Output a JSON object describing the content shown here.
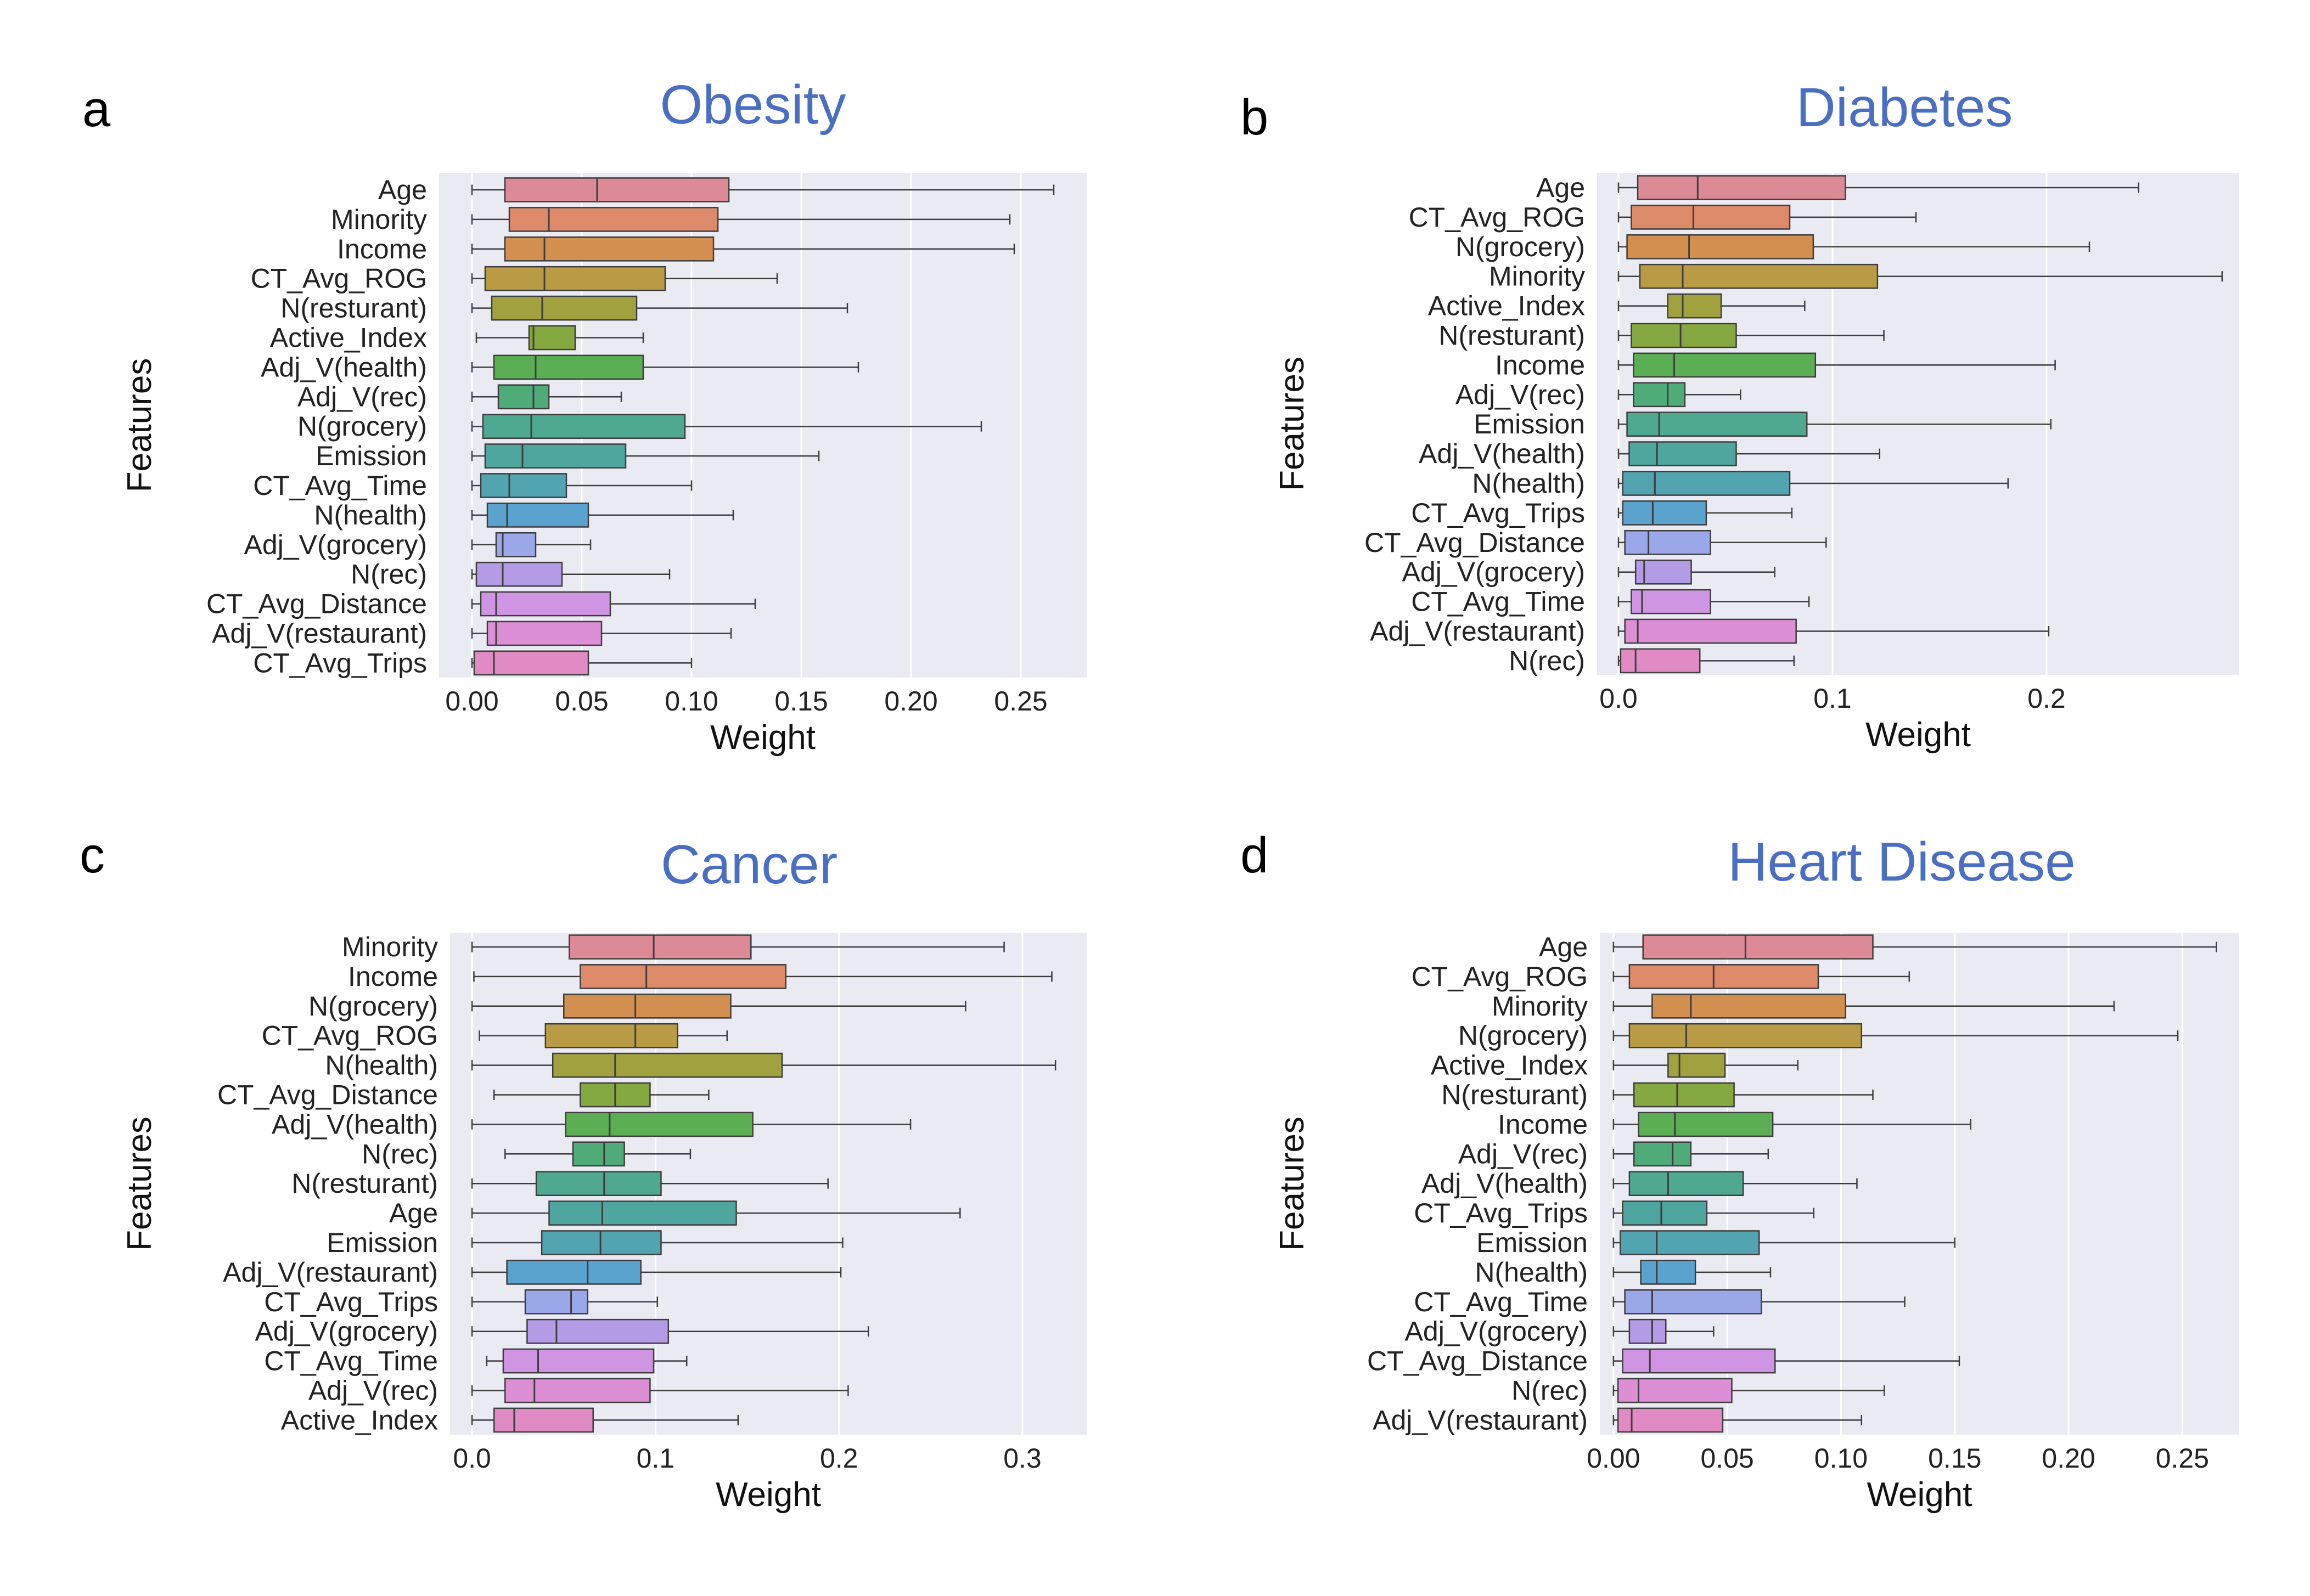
{
  "chart_data": [
    {
      "type": "box",
      "panel": "a",
      "title": "Obesity",
      "xlabel": "Weight",
      "ylabel": "Features",
      "xlim": [
        -0.015,
        0.28
      ],
      "xticks": [
        0.0,
        0.05,
        0.1,
        0.15,
        0.2,
        0.25
      ],
      "xtick_labels": [
        "0.00",
        "0.05",
        "0.10",
        "0.15",
        "0.20",
        "0.25"
      ],
      "grid": true,
      "boxes": [
        {
          "feature": "Age",
          "whislo": 0.0,
          "q1": 0.015,
          "med": 0.057,
          "q3": 0.117,
          "whishi": 0.265,
          "color": "#dd8a97"
        },
        {
          "feature": "Minority",
          "whislo": 0.0,
          "q1": 0.017,
          "med": 0.035,
          "q3": 0.112,
          "whishi": 0.245,
          "color": "#dc8a6a"
        },
        {
          "feature": "Income",
          "whislo": 0.0,
          "q1": 0.015,
          "med": 0.033,
          "q3": 0.11,
          "whishi": 0.247,
          "color": "#d38f4f"
        },
        {
          "feature": "CT_Avg_ROG",
          "whislo": 0.0,
          "q1": 0.006,
          "med": 0.033,
          "q3": 0.088,
          "whishi": 0.139,
          "color": "#b89b44"
        },
        {
          "feature": "N(resturant)",
          "whislo": 0.0,
          "q1": 0.009,
          "med": 0.032,
          "q3": 0.075,
          "whishi": 0.171,
          "color": "#a1a13f"
        },
        {
          "feature": "Active_Index",
          "whislo": 0.002,
          "q1": 0.026,
          "med": 0.028,
          "q3": 0.047,
          "whishi": 0.078,
          "color": "#86a840"
        },
        {
          "feature": "Adj_V(health)",
          "whislo": 0.0,
          "q1": 0.01,
          "med": 0.029,
          "q3": 0.078,
          "whishi": 0.176,
          "color": "#5cae55"
        },
        {
          "feature": "Adj_V(rec)",
          "whislo": 0.0,
          "q1": 0.012,
          "med": 0.028,
          "q3": 0.035,
          "whishi": 0.068,
          "color": "#4fac79"
        },
        {
          "feature": "N(grocery)",
          "whislo": 0.0,
          "q1": 0.005,
          "med": 0.027,
          "q3": 0.097,
          "whishi": 0.232,
          "color": "#4fa990"
        },
        {
          "feature": "Emission",
          "whislo": 0.0,
          "q1": 0.006,
          "med": 0.023,
          "q3": 0.07,
          "whishi": 0.158,
          "color": "#4ea69f"
        },
        {
          "feature": "CT_Avg_Time",
          "whislo": 0.0,
          "q1": 0.004,
          "med": 0.017,
          "q3": 0.043,
          "whishi": 0.1,
          "color": "#52a4b1"
        },
        {
          "feature": "N(health)",
          "whislo": 0.0,
          "q1": 0.007,
          "med": 0.016,
          "q3": 0.053,
          "whishi": 0.119,
          "color": "#5ba3cf"
        },
        {
          "feature": "Adj_V(grocery)",
          "whislo": 0.0,
          "q1": 0.011,
          "med": 0.014,
          "q3": 0.029,
          "whishi": 0.054,
          "color": "#9aa8ea"
        },
        {
          "feature": "N(rec)",
          "whislo": 0.0,
          "q1": 0.002,
          "med": 0.014,
          "q3": 0.041,
          "whishi": 0.09,
          "color": "#b49be6"
        },
        {
          "feature": "CT_Avg_Distance",
          "whislo": 0.0,
          "q1": 0.004,
          "med": 0.011,
          "q3": 0.063,
          "whishi": 0.129,
          "color": "#cf95e2"
        },
        {
          "feature": "Adj_V(restaurant)",
          "whislo": 0.0,
          "q1": 0.007,
          "med": 0.011,
          "q3": 0.059,
          "whishi": 0.118,
          "color": "#dd8fd6"
        },
        {
          "feature": "CT_Avg_Trips",
          "whislo": 0.0,
          "q1": 0.001,
          "med": 0.01,
          "q3": 0.053,
          "whishi": 0.1,
          "color": "#e08bc3"
        }
      ]
    },
    {
      "type": "box",
      "panel": "b",
      "title": "Diabetes",
      "xlabel": "Weight",
      "ylabel": "Features",
      "xlim": [
        -0.01,
        0.29
      ],
      "xticks": [
        0.0,
        0.1,
        0.2
      ],
      "xtick_labels": [
        "0.0",
        "0.1",
        "0.2"
      ],
      "grid": true,
      "boxes": [
        {
          "feature": "Age",
          "whislo": 0.0,
          "q1": 0.009,
          "med": 0.037,
          "q3": 0.106,
          "whishi": 0.243,
          "color": "#dd8a97"
        },
        {
          "feature": "CT_Avg_ROG",
          "whislo": 0.0,
          "q1": 0.006,
          "med": 0.035,
          "q3": 0.08,
          "whishi": 0.139,
          "color": "#dc8a6a"
        },
        {
          "feature": "N(grocery)",
          "whislo": 0.0,
          "q1": 0.004,
          "med": 0.033,
          "q3": 0.091,
          "whishi": 0.22,
          "color": "#d38f4f"
        },
        {
          "feature": "Minority",
          "whislo": 0.0,
          "q1": 0.01,
          "med": 0.03,
          "q3": 0.121,
          "whishi": 0.282,
          "color": "#b89b44"
        },
        {
          "feature": "Active_Index",
          "whislo": 0.0,
          "q1": 0.023,
          "med": 0.03,
          "q3": 0.048,
          "whishi": 0.087,
          "color": "#a1a13f"
        },
        {
          "feature": "N(resturant)",
          "whislo": 0.0,
          "q1": 0.006,
          "med": 0.029,
          "q3": 0.055,
          "whishi": 0.124,
          "color": "#86a840"
        },
        {
          "feature": "Income",
          "whislo": 0.0,
          "q1": 0.007,
          "med": 0.026,
          "q3": 0.092,
          "whishi": 0.204,
          "color": "#5cae55"
        },
        {
          "feature": "Adj_V(rec)",
          "whislo": 0.0,
          "q1": 0.007,
          "med": 0.023,
          "q3": 0.031,
          "whishi": 0.057,
          "color": "#4fac79"
        },
        {
          "feature": "Emission",
          "whislo": 0.0,
          "q1": 0.004,
          "med": 0.019,
          "q3": 0.088,
          "whishi": 0.202,
          "color": "#4fa990"
        },
        {
          "feature": "Adj_V(health)",
          "whislo": 0.0,
          "q1": 0.005,
          "med": 0.018,
          "q3": 0.055,
          "whishi": 0.122,
          "color": "#4ea69f"
        },
        {
          "feature": "N(health)",
          "whislo": 0.0,
          "q1": 0.002,
          "med": 0.017,
          "q3": 0.08,
          "whishi": 0.182,
          "color": "#52a4b1"
        },
        {
          "feature": "CT_Avg_Trips",
          "whislo": 0.0,
          "q1": 0.002,
          "med": 0.016,
          "q3": 0.041,
          "whishi": 0.081,
          "color": "#5ba3cf"
        },
        {
          "feature": "CT_Avg_Distance",
          "whislo": 0.0,
          "q1": 0.003,
          "med": 0.014,
          "q3": 0.043,
          "whishi": 0.097,
          "color": "#9aa8ea"
        },
        {
          "feature": "Adj_V(grocery)",
          "whislo": 0.0,
          "q1": 0.008,
          "med": 0.012,
          "q3": 0.034,
          "whishi": 0.073,
          "color": "#b49be6"
        },
        {
          "feature": "CT_Avg_Time",
          "whislo": 0.0,
          "q1": 0.006,
          "med": 0.011,
          "q3": 0.043,
          "whishi": 0.089,
          "color": "#cf95e2"
        },
        {
          "feature": "Adj_V(restaurant)",
          "whislo": 0.0,
          "q1": 0.003,
          "med": 0.009,
          "q3": 0.083,
          "whishi": 0.201,
          "color": "#dd8fd6"
        },
        {
          "feature": "N(rec)",
          "whislo": 0.0,
          "q1": 0.001,
          "med": 0.008,
          "q3": 0.038,
          "whishi": 0.082,
          "color": "#e08bc3"
        }
      ]
    },
    {
      "type": "box",
      "panel": "c",
      "title": "Cancer",
      "xlabel": "Weight",
      "ylabel": "Features",
      "xlim": [
        -0.012,
        0.335
      ],
      "xticks": [
        0.0,
        0.1,
        0.2,
        0.3
      ],
      "xtick_labels": [
        "0.0",
        "0.1",
        "0.2",
        "0.3"
      ],
      "grid": true,
      "boxes": [
        {
          "feature": "Minority",
          "whislo": 0.0,
          "q1": 0.053,
          "med": 0.099,
          "q3": 0.152,
          "whishi": 0.29,
          "color": "#dd8a97"
        },
        {
          "feature": "Income",
          "whislo": 0.001,
          "q1": 0.059,
          "med": 0.095,
          "q3": 0.171,
          "whishi": 0.316,
          "color": "#dc8a6a"
        },
        {
          "feature": "N(grocery)",
          "whislo": 0.0,
          "q1": 0.05,
          "med": 0.089,
          "q3": 0.141,
          "whishi": 0.269,
          "color": "#d38f4f"
        },
        {
          "feature": "CT_Avg_ROG",
          "whislo": 0.004,
          "q1": 0.04,
          "med": 0.089,
          "q3": 0.112,
          "whishi": 0.139,
          "color": "#b89b44"
        },
        {
          "feature": "N(health)",
          "whislo": 0.0,
          "q1": 0.044,
          "med": 0.078,
          "q3": 0.169,
          "whishi": 0.318,
          "color": "#a1a13f"
        },
        {
          "feature": "CT_Avg_Distance",
          "whislo": 0.012,
          "q1": 0.059,
          "med": 0.078,
          "q3": 0.097,
          "whishi": 0.129,
          "color": "#86a840"
        },
        {
          "feature": "Adj_V(health)",
          "whislo": 0.0,
          "q1": 0.051,
          "med": 0.075,
          "q3": 0.153,
          "whishi": 0.239,
          "color": "#5cae55"
        },
        {
          "feature": "N(rec)",
          "whislo": 0.018,
          "q1": 0.055,
          "med": 0.072,
          "q3": 0.083,
          "whishi": 0.119,
          "color": "#4fac79"
        },
        {
          "feature": "N(resturant)",
          "whislo": 0.0,
          "q1": 0.035,
          "med": 0.072,
          "q3": 0.103,
          "whishi": 0.194,
          "color": "#4fa990"
        },
        {
          "feature": "Age",
          "whislo": 0.0,
          "q1": 0.042,
          "med": 0.071,
          "q3": 0.144,
          "whishi": 0.266,
          "color": "#4ea69f"
        },
        {
          "feature": "Emission",
          "whislo": 0.0,
          "q1": 0.038,
          "med": 0.07,
          "q3": 0.103,
          "whishi": 0.202,
          "color": "#52a4b1"
        },
        {
          "feature": "Adj_V(restaurant)",
          "whislo": 0.0,
          "q1": 0.019,
          "med": 0.063,
          "q3": 0.092,
          "whishi": 0.201,
          "color": "#5ba3cf"
        },
        {
          "feature": "CT_Avg_Trips",
          "whislo": 0.0,
          "q1": 0.029,
          "med": 0.054,
          "q3": 0.063,
          "whishi": 0.101,
          "color": "#9aa8ea"
        },
        {
          "feature": "Adj_V(grocery)",
          "whislo": 0.0,
          "q1": 0.03,
          "med": 0.046,
          "q3": 0.107,
          "whishi": 0.216,
          "color": "#b49be6"
        },
        {
          "feature": "CT_Avg_Time",
          "whislo": 0.008,
          "q1": 0.017,
          "med": 0.036,
          "q3": 0.099,
          "whishi": 0.117,
          "color": "#cf95e2"
        },
        {
          "feature": "Adj_V(rec)",
          "whislo": 0.0,
          "q1": 0.018,
          "med": 0.034,
          "q3": 0.097,
          "whishi": 0.205,
          "color": "#dd8fd6"
        },
        {
          "feature": "Active_Index",
          "whislo": 0.0,
          "q1": 0.012,
          "med": 0.023,
          "q3": 0.066,
          "whishi": 0.145,
          "color": "#e08bc3"
        }
      ]
    },
    {
      "type": "box",
      "panel": "d",
      "title": "Heart Disease",
      "xlabel": "Weight",
      "ylabel": "Features",
      "xlim": [
        -0.006,
        0.275
      ],
      "xticks": [
        0.0,
        0.05,
        0.1,
        0.15,
        0.2,
        0.25
      ],
      "xtick_labels": [
        "0.00",
        "0.05",
        "0.10",
        "0.15",
        "0.20",
        "0.25"
      ],
      "grid": true,
      "boxes": [
        {
          "feature": "Age",
          "whislo": 0.0,
          "q1": 0.013,
          "med": 0.058,
          "q3": 0.114,
          "whishi": 0.265,
          "color": "#dd8a97"
        },
        {
          "feature": "CT_Avg_ROG",
          "whislo": 0.0,
          "q1": 0.007,
          "med": 0.044,
          "q3": 0.09,
          "whishi": 0.13,
          "color": "#dc8a6a"
        },
        {
          "feature": "Minority",
          "whislo": 0.0,
          "q1": 0.017,
          "med": 0.034,
          "q3": 0.102,
          "whishi": 0.22,
          "color": "#d38f4f"
        },
        {
          "feature": "N(grocery)",
          "whislo": 0.0,
          "q1": 0.007,
          "med": 0.032,
          "q3": 0.109,
          "whishi": 0.248,
          "color": "#b89b44"
        },
        {
          "feature": "Active_Index",
          "whislo": 0.0,
          "q1": 0.024,
          "med": 0.029,
          "q3": 0.049,
          "whishi": 0.081,
          "color": "#a1a13f"
        },
        {
          "feature": "N(resturant)",
          "whislo": 0.0,
          "q1": 0.009,
          "med": 0.028,
          "q3": 0.053,
          "whishi": 0.114,
          "color": "#86a840"
        },
        {
          "feature": "Income",
          "whislo": 0.0,
          "q1": 0.011,
          "med": 0.027,
          "q3": 0.07,
          "whishi": 0.157,
          "color": "#5cae55"
        },
        {
          "feature": "Adj_V(rec)",
          "whislo": 0.0,
          "q1": 0.009,
          "med": 0.026,
          "q3": 0.034,
          "whishi": 0.068,
          "color": "#4fac79"
        },
        {
          "feature": "Adj_V(health)",
          "whislo": 0.0,
          "q1": 0.007,
          "med": 0.024,
          "q3": 0.057,
          "whishi": 0.107,
          "color": "#4fa990"
        },
        {
          "feature": "CT_Avg_Trips",
          "whislo": 0.0,
          "q1": 0.004,
          "med": 0.021,
          "q3": 0.041,
          "whishi": 0.088,
          "color": "#4ea69f"
        },
        {
          "feature": "Emission",
          "whislo": 0.0,
          "q1": 0.003,
          "med": 0.019,
          "q3": 0.064,
          "whishi": 0.15,
          "color": "#52a4b1"
        },
        {
          "feature": "N(health)",
          "whislo": 0.0,
          "q1": 0.012,
          "med": 0.019,
          "q3": 0.036,
          "whishi": 0.069,
          "color": "#5ba3cf"
        },
        {
          "feature": "CT_Avg_Time",
          "whislo": 0.0,
          "q1": 0.005,
          "med": 0.017,
          "q3": 0.065,
          "whishi": 0.128,
          "color": "#9aa8ea"
        },
        {
          "feature": "Adj_V(grocery)",
          "whislo": 0.0,
          "q1": 0.007,
          "med": 0.017,
          "q3": 0.023,
          "whishi": 0.044,
          "color": "#b49be6"
        },
        {
          "feature": "CT_Avg_Distance",
          "whislo": 0.0,
          "q1": 0.004,
          "med": 0.016,
          "q3": 0.071,
          "whishi": 0.152,
          "color": "#cf95e2"
        },
        {
          "feature": "N(rec)",
          "whislo": 0.0,
          "q1": 0.002,
          "med": 0.011,
          "q3": 0.052,
          "whishi": 0.119,
          "color": "#dd8fd6"
        },
        {
          "feature": "Adj_V(restaurant)",
          "whislo": 0.0,
          "q1": 0.002,
          "med": 0.008,
          "q3": 0.048,
          "whishi": 0.109,
          "color": "#e08bc3"
        }
      ]
    }
  ]
}
